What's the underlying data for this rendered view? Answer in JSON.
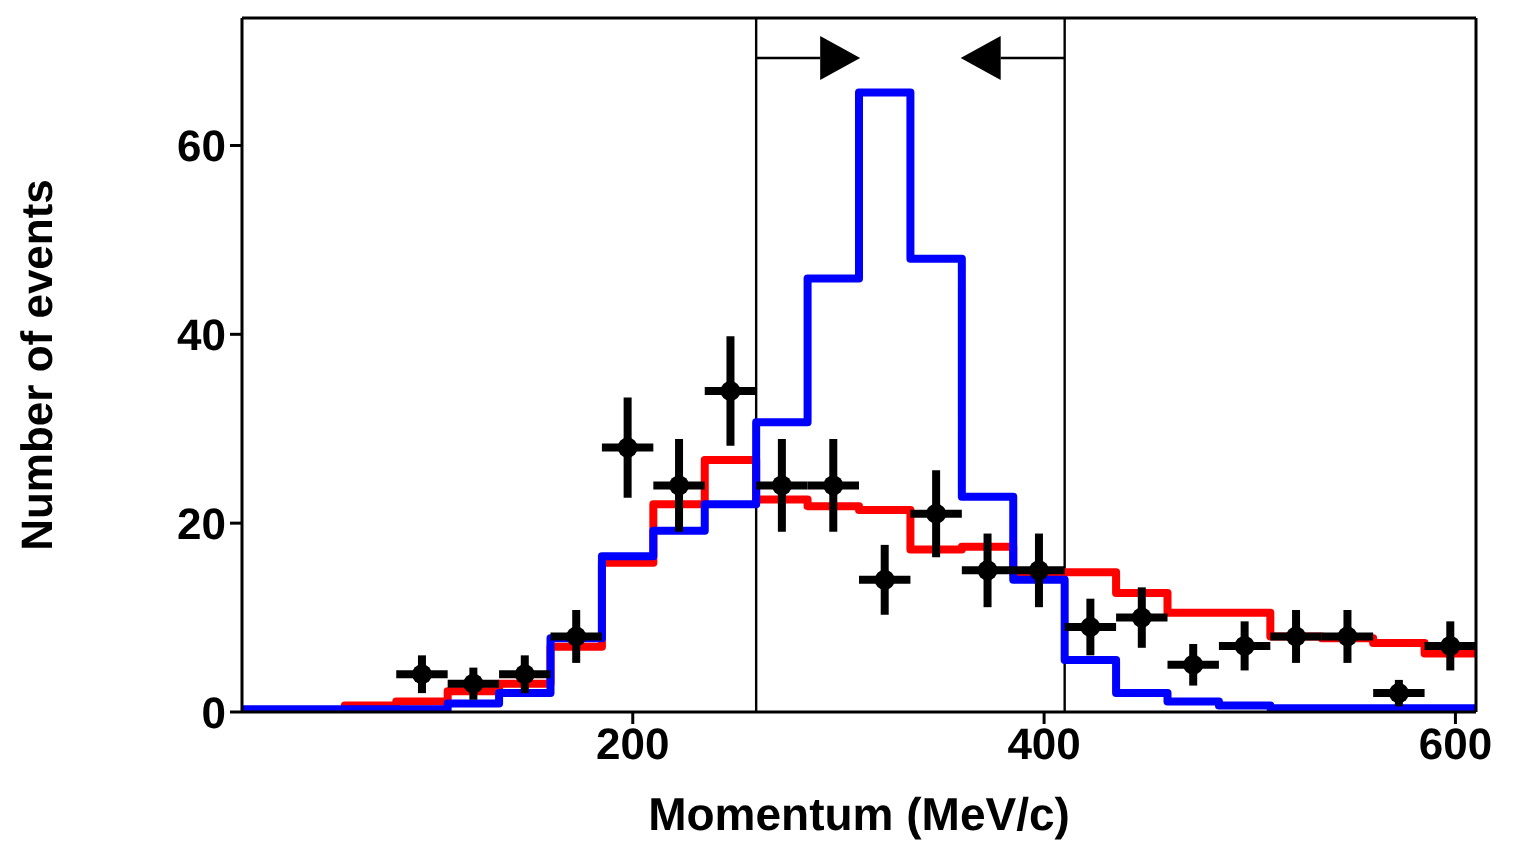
{
  "chart_data": {
    "type": "histogram",
    "xlabel": "Momentum (MeV/c)",
    "ylabel": "Number of events",
    "bins": [
      10,
      35,
      60,
      85,
      110,
      135,
      160,
      185,
      210,
      235,
      260,
      285,
      310,
      335,
      360,
      385,
      410,
      435,
      460,
      485,
      510,
      535,
      560,
      585,
      610
    ],
    "series": [
      {
        "color": "#ff0000",
        "values": [
          0,
          0.2,
          0.7,
          1.1,
          2.2,
          3,
          6.9,
          15.8,
          22,
          26.7,
          22.5,
          21.8,
          21.4,
          17.2,
          17.5,
          14.7,
          14.8,
          12.6,
          10.5,
          10.5,
          8,
          7.8,
          7.3,
          6.2
        ]
      },
      {
        "color": "#0000ff",
        "values": [
          0.3,
          0.3,
          0.3,
          0.3,
          0.9,
          2,
          7.8,
          16.5,
          19.2,
          22,
          30.7,
          45.9,
          65.6,
          48,
          22.8,
          14,
          5.5,
          2,
          1.1,
          0.7,
          0.4,
          0.4,
          0.4,
          0.4
        ]
      },
      {
        "type": "scatter",
        "color": "#000000",
        "x": [
          97.5,
          122.5,
          147.5,
          172.5,
          197.5,
          222.5,
          247.5,
          272.5,
          297.5,
          322.5,
          347.5,
          372.5,
          397.5,
          422.5,
          447.5,
          472.5,
          497.5,
          522.5,
          547.5,
          572.5,
          597.5
        ],
        "values": [
          4,
          3,
          4,
          8,
          28,
          24,
          34,
          24,
          24,
          14,
          21,
          15,
          15,
          9,
          10,
          5,
          7,
          8,
          8,
          2,
          7
        ],
        "errors": [
          2,
          1.7,
          2,
          2.8,
          5.3,
          4.9,
          5.8,
          4.9,
          4.9,
          3.7,
          4.6,
          3.9,
          3.9,
          3,
          3.2,
          2.2,
          2.6,
          2.8,
          2.8,
          1.4,
          2.6
        ],
        "xerrors": [
          12.5,
          12.5,
          12.5,
          12.5,
          12.5,
          12.5,
          12.5,
          12.5,
          12.5,
          12.5,
          12.5,
          12.5,
          12.5,
          12.5,
          12.5,
          12.5,
          12.5,
          12.5,
          12.5,
          12.5,
          12.5
        ]
      }
    ],
    "xlim": [
      10,
      610
    ],
    "ylim": [
      0,
      73.5
    ],
    "xticks": [
      200,
      400,
      600
    ],
    "yticks": [
      0,
      20,
      40,
      60
    ],
    "ref_lines": [
      {
        "axis": "x",
        "value": 260,
        "color": "#000000"
      },
      {
        "axis": "x",
        "value": 410,
        "color": "#000000"
      }
    ],
    "marker": "circle"
  }
}
